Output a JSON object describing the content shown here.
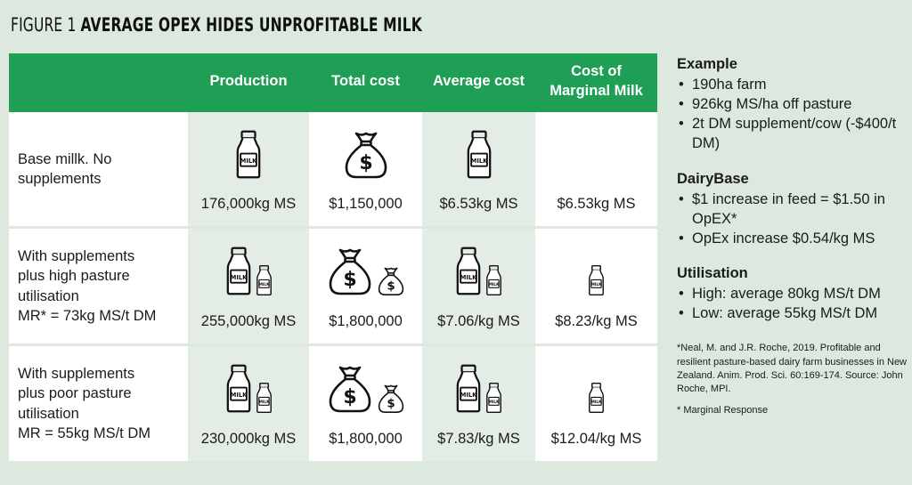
{
  "title": {
    "lead": "FIGURE 1",
    "main": "AVERAGE OPEX HIDES UNPROFITABLE MILK"
  },
  "table": {
    "headers": [
      "",
      "Production",
      "Total cost",
      "Average cost",
      "Cost of Marginal Milk"
    ],
    "rows": [
      {
        "label_lines": [
          "Base millk. No",
          "supplements"
        ],
        "production": "176,000kg MS",
        "total_cost": "$1,150,000",
        "average_cost": "$6.53kg MS",
        "marginal_cost": "$6.53kg MS"
      },
      {
        "label_lines": [
          "With supplements",
          "plus high pasture",
          "utilisation",
          "MR* = 73kg MS/t DM"
        ],
        "production": "255,000kg MS",
        "total_cost": "$1,800,000",
        "average_cost": "$7.06/kg MS",
        "marginal_cost": "$8.23/kg MS"
      },
      {
        "label_lines": [
          "With supplements",
          "plus poor pasture",
          "utilisation",
          "MR = 55kg MS/t DM"
        ],
        "production": "230,000kg MS",
        "total_cost": "$1,800,000",
        "average_cost": "$7.83/kg MS",
        "marginal_cost": "$12.04/kg MS"
      }
    ],
    "icon_text": {
      "milk": "MILK",
      "dollar": "$"
    },
    "colors": {
      "header_green": "#1f9e55",
      "background": "#dde8df",
      "shaded_cell": "#e3ece5"
    }
  },
  "sidebar": {
    "sections": [
      {
        "heading": "Example",
        "items": [
          "190ha farm",
          "926kg MS/ha off pasture",
          "2t DM supplement/cow (-$400/t DM)"
        ]
      },
      {
        "heading": "DairyBase",
        "items": [
          "$1 increase in feed = $1.50 in OpEX*",
          "OpEx increase $0.54/kg MS"
        ]
      },
      {
        "heading": "Utilisation",
        "items": [
          "High: average 80kg MS/t DM",
          "Low: average 55kg MS/t DM"
        ]
      }
    ],
    "footnote": "*Neal, M. and J.R. Roche, 2019. Profitable and resilient pasture-based dairy farm businesses in New Zealand. Anim. Prod. Sci. 60:169-174. Source: John Roche, MPI.",
    "footnote2": "* Marginal Response"
  }
}
